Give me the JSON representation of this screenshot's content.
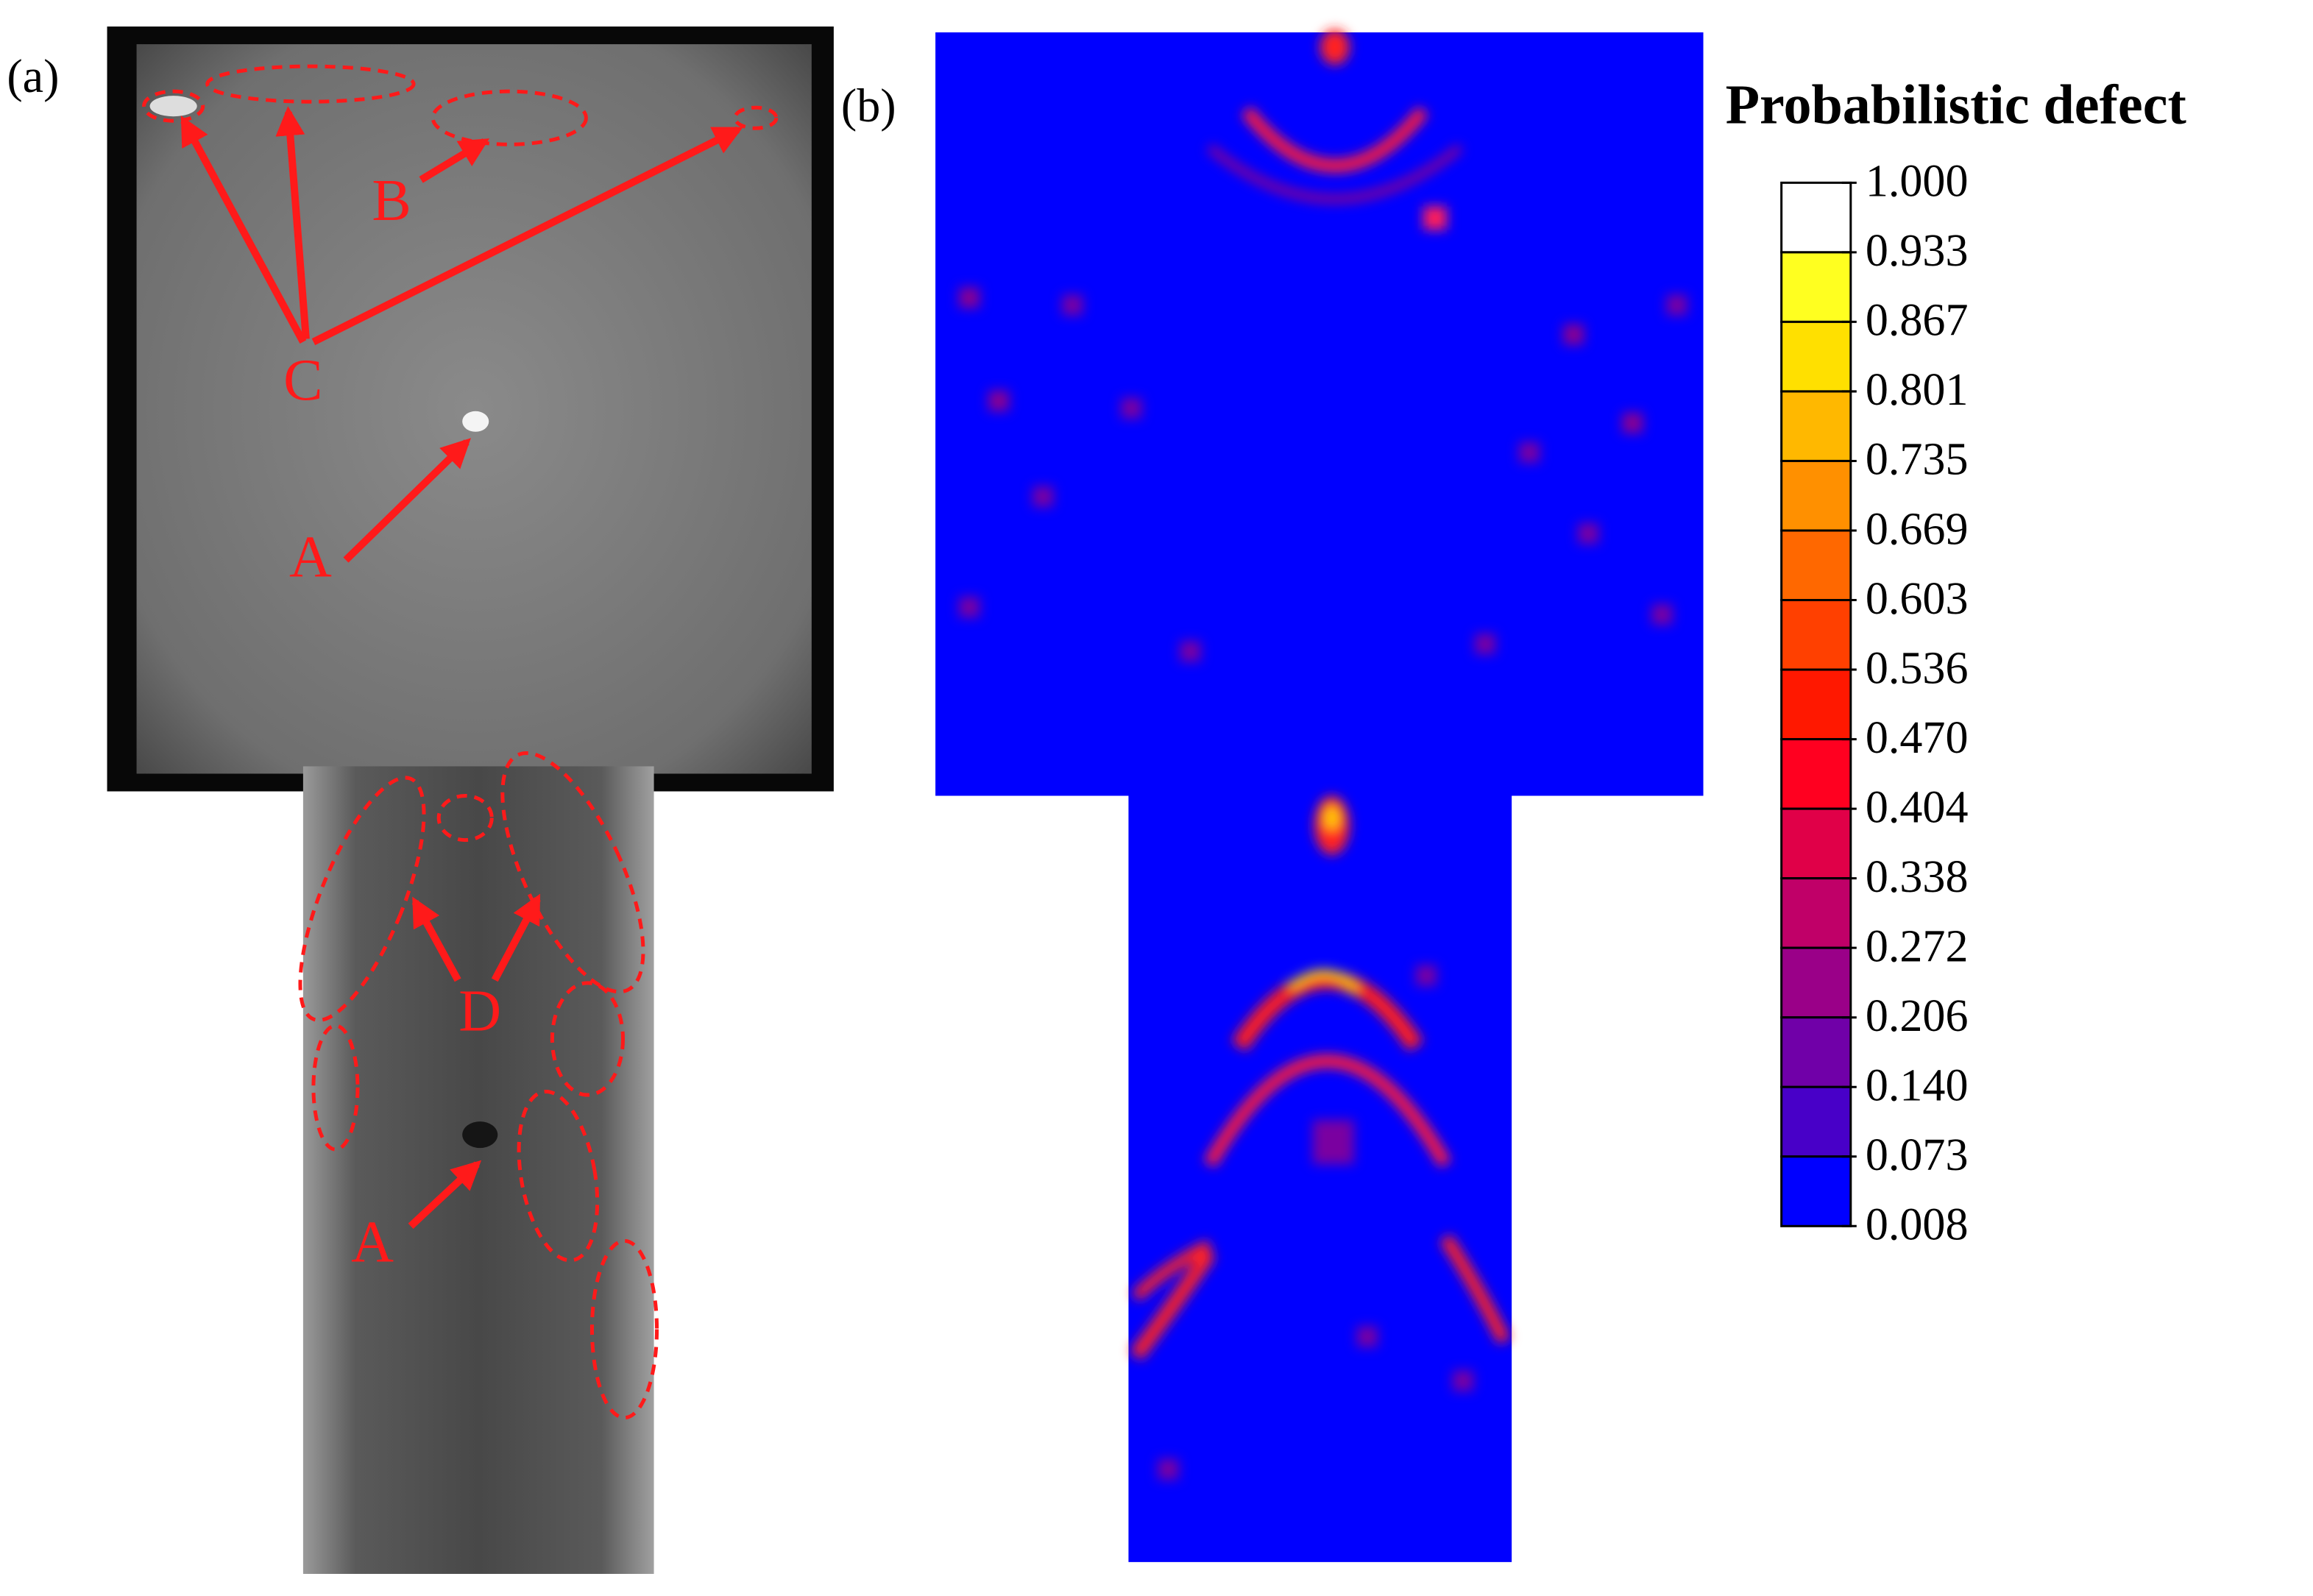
{
  "panel_a": {
    "label": "(a)",
    "annotations": [
      "A",
      "B",
      "C",
      "D",
      "A"
    ]
  },
  "panel_b": {
    "label": "(b)",
    "legend": {
      "title": "Probabilistic defect",
      "levels": [
        "1.000",
        "0.933",
        "0.867",
        "0.801",
        "0.735",
        "0.669",
        "0.603",
        "0.536",
        "0.470",
        "0.404",
        "0.338",
        "0.272",
        "0.206",
        "0.140",
        "0.073",
        "0.008"
      ]
    }
  }
}
